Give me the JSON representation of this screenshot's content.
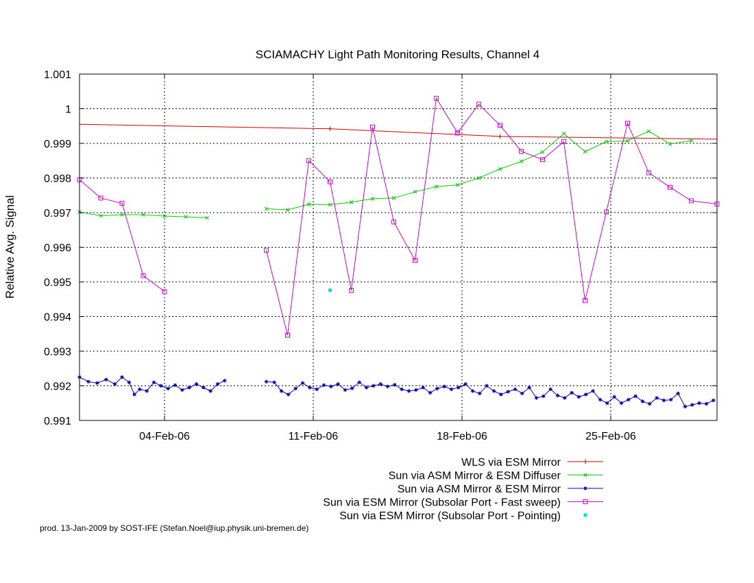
{
  "chart_data": {
    "type": "line",
    "title": "SCIAMACHY Light Path Monitoring Results, Channel 4",
    "xlabel": "",
    "ylabel": "Relative Avg. Signal",
    "x_unit": "date (2006)",
    "xlim": [
      "2006-01-31T00:00",
      "2006-03-02T00:00"
    ],
    "ylim": [
      0.991,
      1.001
    ],
    "x_ticks": [
      {
        "date": "2006-02-04T00:00",
        "label": "04-Feb-06"
      },
      {
        "date": "2006-02-11T00:00",
        "label": "11-Feb-06"
      },
      {
        "date": "2006-02-18T00:00",
        "label": "18-Feb-06"
      },
      {
        "date": "2006-02-25T00:00",
        "label": "25-Feb-06"
      }
    ],
    "y_ticks": [
      {
        "value": 0.991,
        "label": "0.991"
      },
      {
        "value": 0.992,
        "label": "0.992"
      },
      {
        "value": 0.993,
        "label": "0.993"
      },
      {
        "value": 0.994,
        "label": "0.994"
      },
      {
        "value": 0.995,
        "label": "0.995"
      },
      {
        "value": 0.996,
        "label": "0.996"
      },
      {
        "value": 0.997,
        "label": "0.997"
      },
      {
        "value": 0.998,
        "label": "0.998"
      },
      {
        "value": 0.999,
        "label": "0.999"
      },
      {
        "value": 1.0,
        "label": "1"
      },
      {
        "value": 1.001,
        "label": "1.001"
      }
    ],
    "grid": true,
    "legend_position": "bottom-right",
    "series": [
      {
        "name": "WLS via ESM Mirror",
        "color": "#cc0000",
        "marker": "plus",
        "line": true,
        "points": [
          [
            "2006-01-31T00:00",
            0.99955
          ],
          [
            "2006-02-11T19:00",
            0.99942
          ],
          [
            "2006-02-19T19:00",
            0.9992
          ],
          [
            "2006-03-02T00:00",
            0.99912
          ]
        ],
        "marker_dates": [
          "2006-02-11T19:00",
          "2006-02-19T19:00"
        ]
      },
      {
        "name": "Sun via ASM Mirror & ESM Diffuser",
        "color": "#00cc00",
        "marker": "cross",
        "line": true,
        "segments": [
          [
            [
              "2006-01-31T00:00",
              0.99702
            ],
            [
              "2006-02-01T00:00",
              0.99691
            ],
            [
              "2006-02-02T00:00",
              0.99694
            ],
            [
              "2006-02-03T00:00",
              0.99694
            ],
            [
              "2006-02-04T00:00",
              0.9969
            ],
            [
              "2006-02-05T00:00",
              0.99688
            ],
            [
              "2006-02-06T00:00",
              0.99685
            ]
          ],
          [
            [
              "2006-02-08T19:00",
              0.99711
            ],
            [
              "2006-02-09T19:00",
              0.99708
            ],
            [
              "2006-02-10T19:00",
              0.99724
            ],
            [
              "2006-02-11T19:00",
              0.99723
            ],
            [
              "2006-02-12T19:00",
              0.9973
            ],
            [
              "2006-02-13T19:00",
              0.9974
            ],
            [
              "2006-02-14T19:00",
              0.99742
            ],
            [
              "2006-02-15T19:00",
              0.9976
            ],
            [
              "2006-02-16T19:00",
              0.99775
            ],
            [
              "2006-02-17T19:00",
              0.9978
            ],
            [
              "2006-02-18T19:00",
              0.998
            ],
            [
              "2006-02-19T19:00",
              0.99826
            ],
            [
              "2006-02-20T19:00",
              0.99848
            ],
            [
              "2006-02-21T19:00",
              0.99875
            ],
            [
              "2006-02-22T19:00",
              0.99928
            ],
            [
              "2006-02-23T19:00",
              0.99876
            ],
            [
              "2006-02-24T19:00",
              0.99905
            ],
            [
              "2006-02-25T19:00",
              0.99907
            ],
            [
              "2006-02-26T19:00",
              0.99935
            ],
            [
              "2006-02-27T19:00",
              0.99898
            ],
            [
              "2006-02-28T19:00",
              0.99908
            ]
          ]
        ]
      },
      {
        "name": "Sun via ASM Mirror & ESM Mirror",
        "color": "#0000aa",
        "marker": "star",
        "line": true,
        "segments": [
          [
            [
              "2006-01-31T00:00",
              0.99225
            ],
            [
              "2006-01-31T10:00",
              0.99212
            ],
            [
              "2006-01-31T20:00",
              0.99208
            ],
            [
              "2006-02-01T06:00",
              0.99218
            ],
            [
              "2006-02-01T16:00",
              0.99205
            ],
            [
              "2006-02-02T00:00",
              0.99225
            ],
            [
              "2006-02-02T08:00",
              0.9921
            ],
            [
              "2006-02-02T14:00",
              0.99175
            ],
            [
              "2006-02-02T20:00",
              0.9919
            ],
            [
              "2006-02-03T04:00",
              0.99185
            ],
            [
              "2006-02-03T12:00",
              0.9921
            ],
            [
              "2006-02-03T20:00",
              0.992
            ],
            [
              "2006-02-04T04:00",
              0.99192
            ],
            [
              "2006-02-04T12:00",
              0.99202
            ],
            [
              "2006-02-04T20:00",
              0.99188
            ],
            [
              "2006-02-05T04:00",
              0.99195
            ],
            [
              "2006-02-05T12:00",
              0.99205
            ],
            [
              "2006-02-05T20:00",
              0.99195
            ],
            [
              "2006-02-06T04:00",
              0.99185
            ],
            [
              "2006-02-06T12:00",
              0.99205
            ],
            [
              "2006-02-06T20:00",
              0.99215
            ]
          ],
          [
            [
              "2006-02-08T19:00",
              0.99212
            ],
            [
              "2006-02-09T04:00",
              0.9921
            ],
            [
              "2006-02-09T12:00",
              0.99185
            ],
            [
              "2006-02-09T20:00",
              0.99175
            ],
            [
              "2006-02-10T04:00",
              0.99192
            ],
            [
              "2006-02-10T12:00",
              0.99208
            ],
            [
              "2006-02-10T20:00",
              0.99195
            ],
            [
              "2006-02-11T04:00",
              0.9919
            ],
            [
              "2006-02-11T12:00",
              0.99202
            ],
            [
              "2006-02-11T20:00",
              0.99198
            ],
            [
              "2006-02-12T04:00",
              0.99205
            ],
            [
              "2006-02-12T12:00",
              0.99188
            ],
            [
              "2006-02-12T20:00",
              0.99193
            ],
            [
              "2006-02-13T04:00",
              0.9921
            ],
            [
              "2006-02-13T12:00",
              0.99195
            ],
            [
              "2006-02-13T20:00",
              0.992
            ],
            [
              "2006-02-14T04:00",
              0.99205
            ],
            [
              "2006-02-14T12:00",
              0.99198
            ],
            [
              "2006-02-14T20:00",
              0.99203
            ],
            [
              "2006-02-15T04:00",
              0.9919
            ],
            [
              "2006-02-15T12:00",
              0.99185
            ],
            [
              "2006-02-15T20:00",
              0.99188
            ],
            [
              "2006-02-16T04:00",
              0.99195
            ],
            [
              "2006-02-16T12:00",
              0.9918
            ],
            [
              "2006-02-16T20:00",
              0.99192
            ],
            [
              "2006-02-17T04:00",
              0.99198
            ],
            [
              "2006-02-17T12:00",
              0.9919
            ],
            [
              "2006-02-17T20:00",
              0.99195
            ],
            [
              "2006-02-18T04:00",
              0.99205
            ],
            [
              "2006-02-18T12:00",
              0.99185
            ],
            [
              "2006-02-18T20:00",
              0.99178
            ],
            [
              "2006-02-19T04:00",
              0.992
            ],
            [
              "2006-02-19T12:00",
              0.99185
            ],
            [
              "2006-02-19T20:00",
              0.99175
            ],
            [
              "2006-02-20T04:00",
              0.99183
            ],
            [
              "2006-02-20T12:00",
              0.9919
            ],
            [
              "2006-02-20T20:00",
              0.99178
            ],
            [
              "2006-02-21T04:00",
              0.99195
            ],
            [
              "2006-02-21T12:00",
              0.99165
            ],
            [
              "2006-02-21T20:00",
              0.9917
            ],
            [
              "2006-02-22T04:00",
              0.9919
            ],
            [
              "2006-02-22T12:00",
              0.99172
            ],
            [
              "2006-02-22T20:00",
              0.99165
            ],
            [
              "2006-02-23T04:00",
              0.9918
            ],
            [
              "2006-02-23T12:00",
              0.99168
            ],
            [
              "2006-02-23T20:00",
              0.99175
            ],
            [
              "2006-02-24T04:00",
              0.99185
            ],
            [
              "2006-02-24T12:00",
              0.9916
            ],
            [
              "2006-02-24T20:00",
              0.9915
            ],
            [
              "2006-02-25T04:00",
              0.99168
            ],
            [
              "2006-02-25T12:00",
              0.9915
            ],
            [
              "2006-02-25T20:00",
              0.9916
            ],
            [
              "2006-02-26T04:00",
              0.9917
            ],
            [
              "2006-02-26T12:00",
              0.99155
            ],
            [
              "2006-02-26T20:00",
              0.99148
            ],
            [
              "2006-02-27T04:00",
              0.99165
            ],
            [
              "2006-02-27T12:00",
              0.99158
            ],
            [
              "2006-02-27T20:00",
              0.9916
            ],
            [
              "2006-02-28T04:00",
              0.99178
            ],
            [
              "2006-02-28T12:00",
              0.9914
            ],
            [
              "2006-02-28T20:00",
              0.99145
            ],
            [
              "2006-03-01T04:00",
              0.9915
            ],
            [
              "2006-03-01T12:00",
              0.99148
            ],
            [
              "2006-03-01T20:00",
              0.99158
            ]
          ]
        ]
      },
      {
        "name": "Sun via ESM Mirror (Subsolar Port - Fast sweep)",
        "color": "#cc00cc",
        "marker": "square",
        "line": true,
        "segments": [
          [
            [
              "2006-01-31T00:00",
              0.99795
            ],
            [
              "2006-02-01T00:00",
              0.99742
            ],
            [
              "2006-02-02T00:00",
              0.99727
            ],
            [
              "2006-02-03T00:00",
              0.99518
            ],
            [
              "2006-02-04T00:00",
              0.99472
            ]
          ],
          [
            [
              "2006-02-08T19:00",
              0.99591
            ],
            [
              "2006-02-09T19:00",
              0.99346
            ],
            [
              "2006-02-10T19:00",
              0.9985
            ],
            [
              "2006-02-11T19:00",
              0.99789
            ],
            [
              "2006-02-12T19:00",
              0.99475
            ],
            [
              "2006-02-13T19:00",
              0.99947
            ],
            [
              "2006-02-14T19:00",
              0.99673
            ],
            [
              "2006-02-15T19:00",
              0.99562
            ],
            [
              "2006-02-16T19:00",
              1.0003
            ],
            [
              "2006-02-17T19:00",
              0.9993
            ],
            [
              "2006-02-18T19:00",
              1.00013
            ],
            [
              "2006-02-19T19:00",
              0.99952
            ],
            [
              "2006-02-20T19:00",
              0.99877
            ],
            [
              "2006-02-21T19:00",
              0.99853
            ],
            [
              "2006-02-22T19:00",
              0.99905
            ],
            [
              "2006-02-23T19:00",
              0.99446
            ],
            [
              "2006-02-24T19:00",
              0.99702
            ],
            [
              "2006-02-25T19:00",
              0.99958
            ],
            [
              "2006-02-26T19:00",
              0.99815
            ],
            [
              "2006-02-27T19:00",
              0.99773
            ],
            [
              "2006-02-28T19:00",
              0.99734
            ],
            [
              "2006-03-02T00:00",
              0.99725
            ]
          ]
        ]
      },
      {
        "name": "Sun via ESM Mirror (Subsolar Port - Pointing)",
        "color": "#00e0e0",
        "marker": "dot",
        "line": false,
        "points": [
          [
            "2006-02-11T19:00",
            0.99476
          ]
        ]
      }
    ]
  },
  "footer": "prod. 13-Jan-2009 by SOST-IFE (Stefan.Noel@iup.physik.uni-bremen.de)"
}
